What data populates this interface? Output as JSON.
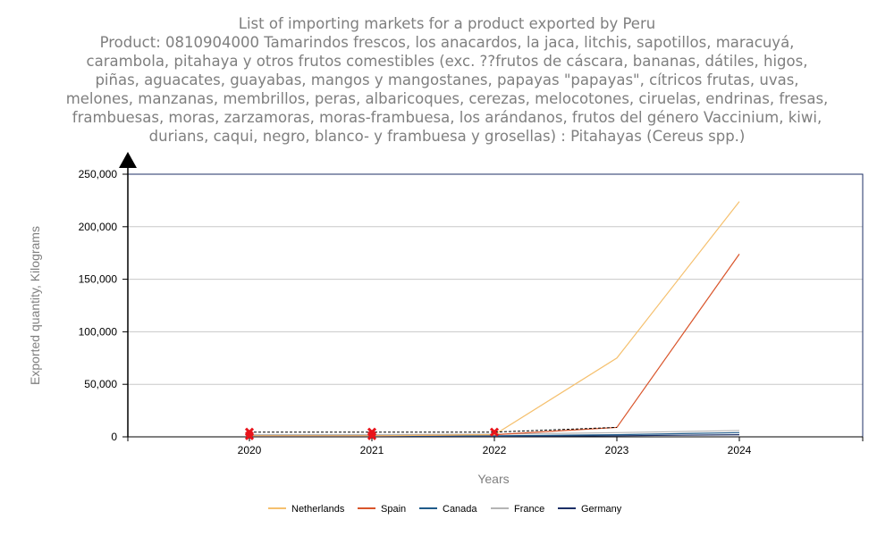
{
  "chart_data": {
    "type": "line",
    "title_lines": [
      "List of importing markets for a product exported by Peru",
      "Product: 0810904000 Tamarindos frescos, los anacardos, la jaca, litchis, sapotillos, maracuyá,",
      "carambola, pitahaya y otros frutos comestibles (exc. ??frutos de cáscara, bananas, dátiles, higos,",
      "piñas, aguacates, guayabas, mangos y mangostanes, papayas \"papayas\", cítricos frutas, uvas,",
      "melones, manzanas, membrillos, peras, albaricoques, cerezas, melocotones, ciruelas, endrinas, fresas,",
      "frambuesas, moras, zarzamoras, moras-frambuesa, los arándanos, frutos del género Vaccinium, kiwi,",
      "durians, caqui, negro, blanco- y frambuesa y grosellas) : Pitahayas (Cereus spp.)"
    ],
    "xlabel": "Years",
    "ylabel": "Exported quantity, Kilograms",
    "x": [
      "2020",
      "2021",
      "2022",
      "2023",
      "2024"
    ],
    "ylim": [
      0,
      250000
    ],
    "yticks": [
      "0",
      "50,000",
      "100,000",
      "150,000",
      "200,000",
      "250,000"
    ],
    "grid": true,
    "legend_position": "bottom",
    "series": [
      {
        "name": "Netherlands",
        "color": "#f5c06e",
        "values": [
          1000,
          1000,
          2000,
          75000,
          224000
        ]
      },
      {
        "name": "Spain",
        "color": "#d9552b",
        "values": [
          1000,
          1000,
          2000,
          9000,
          174000
        ]
      },
      {
        "name": "Canada",
        "color": "#1f5b8a",
        "values": [
          1000,
          1000,
          1000,
          2000,
          4000
        ]
      },
      {
        "name": "France",
        "color": "#b4b4b4",
        "values": [
          2000,
          2000,
          2500,
          4000,
          6000
        ]
      },
      {
        "name": "Germany",
        "color": "#1c2f66",
        "values": [
          500,
          500,
          500,
          1000,
          2000
        ]
      }
    ],
    "overlay_series": [
      {
        "style": "dashed",
        "color": "#000000",
        "values": [
          4500,
          4500,
          4500,
          9000,
          null
        ]
      }
    ],
    "markers": [
      {
        "x": "2020",
        "values": [
          4500,
          1000
        ]
      },
      {
        "x": "2021",
        "values": [
          4500,
          1000
        ]
      },
      {
        "x": "2022",
        "values": [
          4500
        ]
      }
    ],
    "marker_color": "#e8141b"
  }
}
